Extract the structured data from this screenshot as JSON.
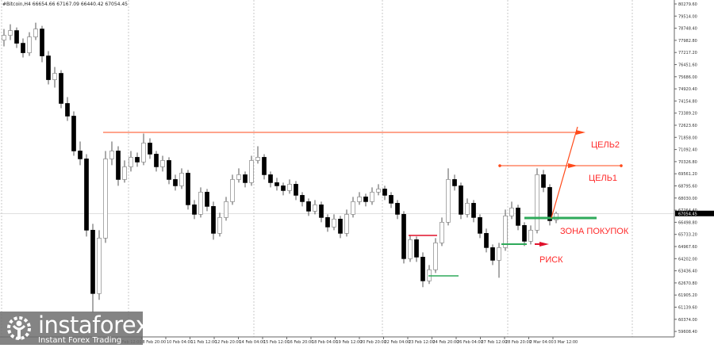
{
  "header": {
    "symbol": "#Bitcoin,H4",
    "ohlc": "66654.66 67167.09 66440.42 67054.45"
  },
  "logo": {
    "brand": "instaforex",
    "tagline": "Instant Forex Trading"
  },
  "colors": {
    "bull_body": "#ffffff",
    "bear_body": "#000000",
    "wick": "#555555",
    "target_line": "#ff4a1a",
    "zone_line": "#2eaa5a",
    "risk_line": "#e0102a",
    "label": "#ff2a2a",
    "grid": "#bbbbbb"
  },
  "annotations": {
    "target2": {
      "label": "ЦЕЛЬ2",
      "price": 72170
    },
    "target1": {
      "label": "ЦЕЛЬ1",
      "price": 70070
    },
    "buy_zone": {
      "label": "ЗОНА ПОКУПОК",
      "price": 66770
    },
    "risk": {
      "label": "РИСК",
      "price": 65120
    }
  },
  "chart_data": {
    "type": "candlestick",
    "symbol": "#Bitcoin",
    "timeframe": "H4",
    "ylim": [
      59585.2,
      80279.6
    ],
    "current_price": "67054.45",
    "grid": "vertical dotted",
    "y_ticks": [
      "80279.60",
      "79514.00",
      "78748.40",
      "77982.80",
      "77217.20",
      "76451.60",
      "75686.00",
      "74920.40",
      "74154.80",
      "73389.20",
      "72623.60",
      "71858.00",
      "71092.40",
      "70326.80",
      "69561.20",
      "68795.60",
      "68030.00",
      "67264.40",
      "66498.80",
      "65733.20",
      "64967.60",
      "64202.00",
      "63436.40",
      "62670.80",
      "61905.20",
      "61139.60",
      "60374.00",
      "59608.40"
    ],
    "x_ticks": [
      "7 Feb 12:00",
      "8 Feb 20:00",
      "10 Feb 04:00",
      "11 Feb 12:00",
      "12 Feb 20:00",
      "14 Feb 04:00",
      "15 Feb 12:00",
      "16 Feb 20:00",
      "18 Feb 04:00",
      "19 Feb 12:00",
      "20 Feb 20:00",
      "22 Feb 04:00",
      "23 Feb 12:00",
      "24 Feb 20:00",
      "26 Feb 04:00",
      "27 Feb 12:00",
      "28 Feb 20:00",
      "2 Mar 04:00",
      "3 Mar 12:00"
    ],
    "candles": [
      [
        78000,
        78700,
        77600,
        78300
      ],
      [
        78300,
        79000,
        78000,
        78600
      ],
      [
        78600,
        78800,
        77500,
        77800
      ],
      [
        77800,
        78100,
        76900,
        77200
      ],
      [
        77200,
        78500,
        77000,
        78200
      ],
      [
        78200,
        79100,
        78000,
        78700
      ],
      [
        78700,
        78900,
        76600,
        77000
      ],
      [
        77000,
        77300,
        75200,
        75500
      ],
      [
        75500,
        76300,
        75000,
        75900
      ],
      [
        75900,
        76100,
        73700,
        74000
      ],
      [
        74000,
        74400,
        72900,
        73200
      ],
      [
        73200,
        73500,
        70700,
        71000
      ],
      [
        71000,
        71600,
        70100,
        70500
      ],
      [
        70500,
        70800,
        65600,
        66000
      ],
      [
        66000,
        66400,
        60800,
        62000
      ],
      [
        62000,
        66000,
        61600,
        65500
      ],
      [
        65500,
        71000,
        65200,
        70500
      ],
      [
        70500,
        71600,
        70100,
        71000
      ],
      [
        71000,
        71300,
        68800,
        69200
      ],
      [
        69200,
        70400,
        69000,
        70000
      ],
      [
        70000,
        71000,
        69700,
        70600
      ],
      [
        70600,
        70900,
        70000,
        70300
      ],
      [
        70300,
        72100,
        70100,
        71500
      ],
      [
        71500,
        71800,
        70500,
        70800
      ],
      [
        70800,
        71000,
        69700,
        70000
      ],
      [
        70000,
        70700,
        69700,
        70400
      ],
      [
        70400,
        70600,
        68900,
        69200
      ],
      [
        69200,
        69500,
        68500,
        68800
      ],
      [
        68800,
        69900,
        68600,
        69600
      ],
      [
        69600,
        69800,
        67300,
        67600
      ],
      [
        67600,
        67900,
        66700,
        67000
      ],
      [
        67000,
        68700,
        66800,
        68400
      ],
      [
        68400,
        68600,
        67200,
        67500
      ],
      [
        67500,
        67800,
        65400,
        65800
      ],
      [
        65800,
        67100,
        65600,
        66800
      ],
      [
        66800,
        68100,
        66600,
        67800
      ],
      [
        67800,
        69500,
        67600,
        69200
      ],
      [
        69200,
        69900,
        69000,
        69500
      ],
      [
        69500,
        69700,
        68700,
        69000
      ],
      [
        69000,
        70700,
        68800,
        70400
      ],
      [
        70400,
        71300,
        70200,
        70600
      ],
      [
        70600,
        70800,
        69200,
        69500
      ],
      [
        69500,
        69700,
        68700,
        69000
      ],
      [
        69000,
        69300,
        68500,
        68800
      ],
      [
        68800,
        69000,
        68200,
        68500
      ],
      [
        68500,
        69200,
        68300,
        68900
      ],
      [
        68900,
        69100,
        67900,
        68200
      ],
      [
        68200,
        68400,
        67500,
        67800
      ],
      [
        67800,
        68000,
        66900,
        67200
      ],
      [
        67200,
        67900,
        67000,
        67600
      ],
      [
        67600,
        67800,
        66500,
        66800
      ],
      [
        66800,
        67000,
        65900,
        66200
      ],
      [
        66200,
        67000,
        66000,
        66700
      ],
      [
        66700,
        66900,
        65500,
        65800
      ],
      [
        65800,
        67300,
        65600,
        67000
      ],
      [
        67000,
        68100,
        66800,
        67800
      ],
      [
        67800,
        68400,
        67600,
        68100
      ],
      [
        68100,
        68300,
        67500,
        67800
      ],
      [
        67800,
        68700,
        67600,
        68400
      ],
      [
        68400,
        68900,
        68200,
        68600
      ],
      [
        68600,
        68800,
        67900,
        68200
      ],
      [
        68200,
        68400,
        67400,
        67700
      ],
      [
        67700,
        67900,
        66700,
        67000
      ],
      [
        67000,
        67200,
        63900,
        64200
      ],
      [
        64200,
        65700,
        64000,
        65400
      ],
      [
        65400,
        65600,
        64000,
        64300
      ],
      [
        64300,
        64600,
        62400,
        62800
      ],
      [
        62800,
        63800,
        62600,
        63500
      ],
      [
        63500,
        65500,
        63300,
        65200
      ],
      [
        65200,
        66800,
        65000,
        66500
      ],
      [
        66500,
        69900,
        66300,
        69200
      ],
      [
        69200,
        69500,
        68500,
        68800
      ],
      [
        68800,
        69000,
        66700,
        67000
      ],
      [
        67000,
        68000,
        66800,
        67700
      ],
      [
        67700,
        67900,
        66500,
        66800
      ],
      [
        66800,
        67000,
        65500,
        65800
      ],
      [
        65800,
        66100,
        64600,
        64900
      ],
      [
        64900,
        65100,
        63800,
        64100
      ],
      [
        64100,
        65200,
        63000,
        64900
      ],
      [
        64900,
        67300,
        64700,
        66900
      ],
      [
        66900,
        67800,
        66700,
        67400
      ],
      [
        67400,
        67600,
        66000,
        66300
      ],
      [
        66300,
        66500,
        65000,
        65300
      ],
      [
        65300,
        66300,
        65100,
        66000
      ],
      [
        66000,
        69900,
        65800,
        69500
      ],
      [
        69500,
        69800,
        68400,
        68700
      ],
      [
        68700,
        68900,
        66300,
        66600
      ],
      [
        66654.66,
        67167.09,
        66440.42,
        67054.45
      ]
    ]
  }
}
